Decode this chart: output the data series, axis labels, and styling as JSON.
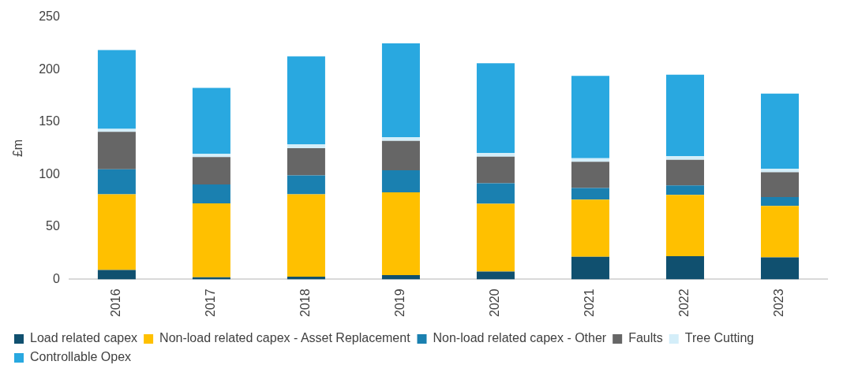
{
  "chart_data": {
    "type": "bar",
    "stacked": true,
    "ylabel": "£m",
    "categories": [
      "2016",
      "2017",
      "2018",
      "2019",
      "2020",
      "2021",
      "2022",
      "2023"
    ],
    "series": [
      {
        "name": "Load related capex",
        "color": "#10506f",
        "values": [
          9,
          2,
          2.5,
          4,
          7.5,
          21.5,
          22,
          21
        ]
      },
      {
        "name": "Non-load related capex - Asset Replacement",
        "color": "#ffc000",
        "values": [
          72,
          70.5,
          78.5,
          79,
          64.5,
          54.5,
          58.5,
          49
        ]
      },
      {
        "name": "Non-load related capex - Other",
        "color": "#1a80b0",
        "values": [
          24,
          18,
          18,
          21,
          19.5,
          11,
          9,
          8.5
        ]
      },
      {
        "name": "Faults",
        "color": "#666666",
        "values": [
          35.5,
          26,
          26,
          28,
          25.5,
          25,
          24.5,
          23.5
        ]
      },
      {
        "name": "Tree Cutting",
        "color": "#d4eef9",
        "values": [
          3,
          3,
          3.5,
          3.5,
          3.5,
          3.5,
          3.5,
          3.5
        ]
      },
      {
        "name": "Controllable Opex",
        "color": "#29a8e0",
        "values": [
          75,
          63,
          84,
          89.5,
          85.5,
          78.5,
          77.5,
          71.5
        ]
      }
    ],
    "ylim": [
      0,
      250
    ],
    "yticks": [
      0,
      50,
      100,
      150,
      200,
      250
    ],
    "grid": false,
    "legend": "bottom"
  }
}
